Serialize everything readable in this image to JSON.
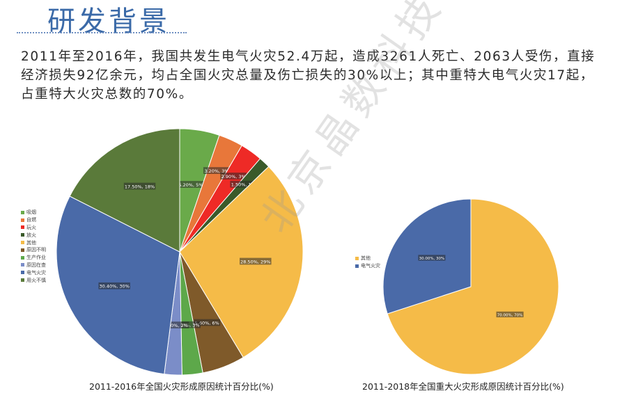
{
  "page": {
    "title": "研发背景",
    "intro": "2011年至2016年，我国共发生电气火灾52.4万起，造成3261人死亡、2063人受伤，直接经济损失92亿余元，均占全国火灾总量及伤亡损失的30%以上；其中重特大电气火灾17起，占重特大火灾总数的70%。",
    "watermark": "北京晶数科技"
  },
  "chart_data": [
    {
      "type": "pie",
      "title": "2011-2016年全国火灾形成原因统计百分比(%)",
      "legend_position": "left",
      "series": [
        {
          "name": "吸烟",
          "value": 5.2,
          "color": "#6aaa4a",
          "label": "5.20%, 5%"
        },
        {
          "name": "自燃",
          "value": 3.2,
          "color": "#e8773a",
          "label": "3.20%, 3%"
        },
        {
          "name": "玩火",
          "value": 2.9,
          "color": "#ee2a26",
          "label": "2.90%, 3%"
        },
        {
          "name": "放火",
          "value": 1.5,
          "color": "#3a5a2a",
          "label": "1.50%, 1%"
        },
        {
          "name": "其他",
          "value": 28.5,
          "color": "#f5bb48",
          "label": "28.50%, 29%"
        },
        {
          "name": "原因不明",
          "value": 5.6,
          "color": "#7f5a2a",
          "label": "5.60%, 6%"
        },
        {
          "name": "生产作业",
          "value": 2.7,
          "color": "#5da84a",
          "label": "2.70%, 3%"
        },
        {
          "name": "原因在查",
          "value": 2.3,
          "color": "#7b8dc8",
          "label": "2.30%, 2%"
        },
        {
          "name": "电气火灾",
          "value": 30.4,
          "color": "#4a6aa8",
          "label": "30.40%, 30%"
        },
        {
          "name": "用火不慎",
          "value": 17.5,
          "color": "#5a7a3a",
          "label": "17.50%, 18%"
        }
      ]
    },
    {
      "type": "pie",
      "title": "2011-2018年全国重大火灾形成原因统计百分比(%)",
      "legend_position": "left",
      "series": [
        {
          "name": "其他",
          "value": 70.0,
          "color": "#f5bb48",
          "label": "70.00%, 70%"
        },
        {
          "name": "电气火灾",
          "value": 30.0,
          "color": "#4a6aa8",
          "label": "30.00%, 30%"
        }
      ]
    }
  ]
}
